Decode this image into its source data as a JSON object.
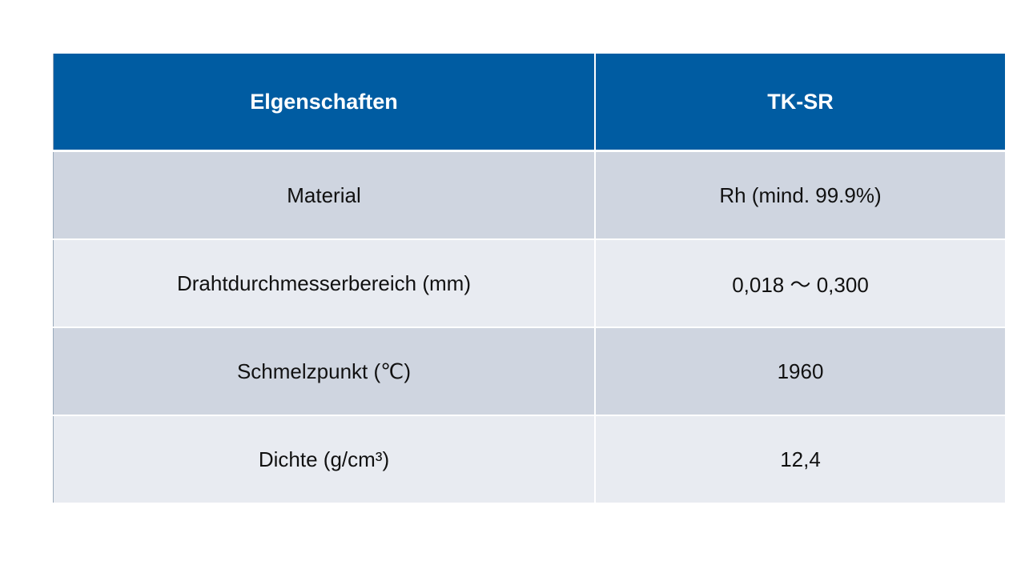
{
  "header": [
    "Elgenschaften",
    "TK-SR"
  ],
  "rows": [
    [
      "Material",
      "Rh (mind. 99.9%)"
    ],
    [
      "Drahtdurchmesserbereich (mm)",
      "0,018 ～ 0,300"
    ],
    [
      "Schmelzpunkt (℃)",
      "1960"
    ],
    [
      "Dichte (g/cm³)",
      "12,4"
    ]
  ],
  "colors": {
    "header": "#005ca2",
    "row_dark": "#cfd5e0",
    "row_light": "#e8ebf1"
  }
}
